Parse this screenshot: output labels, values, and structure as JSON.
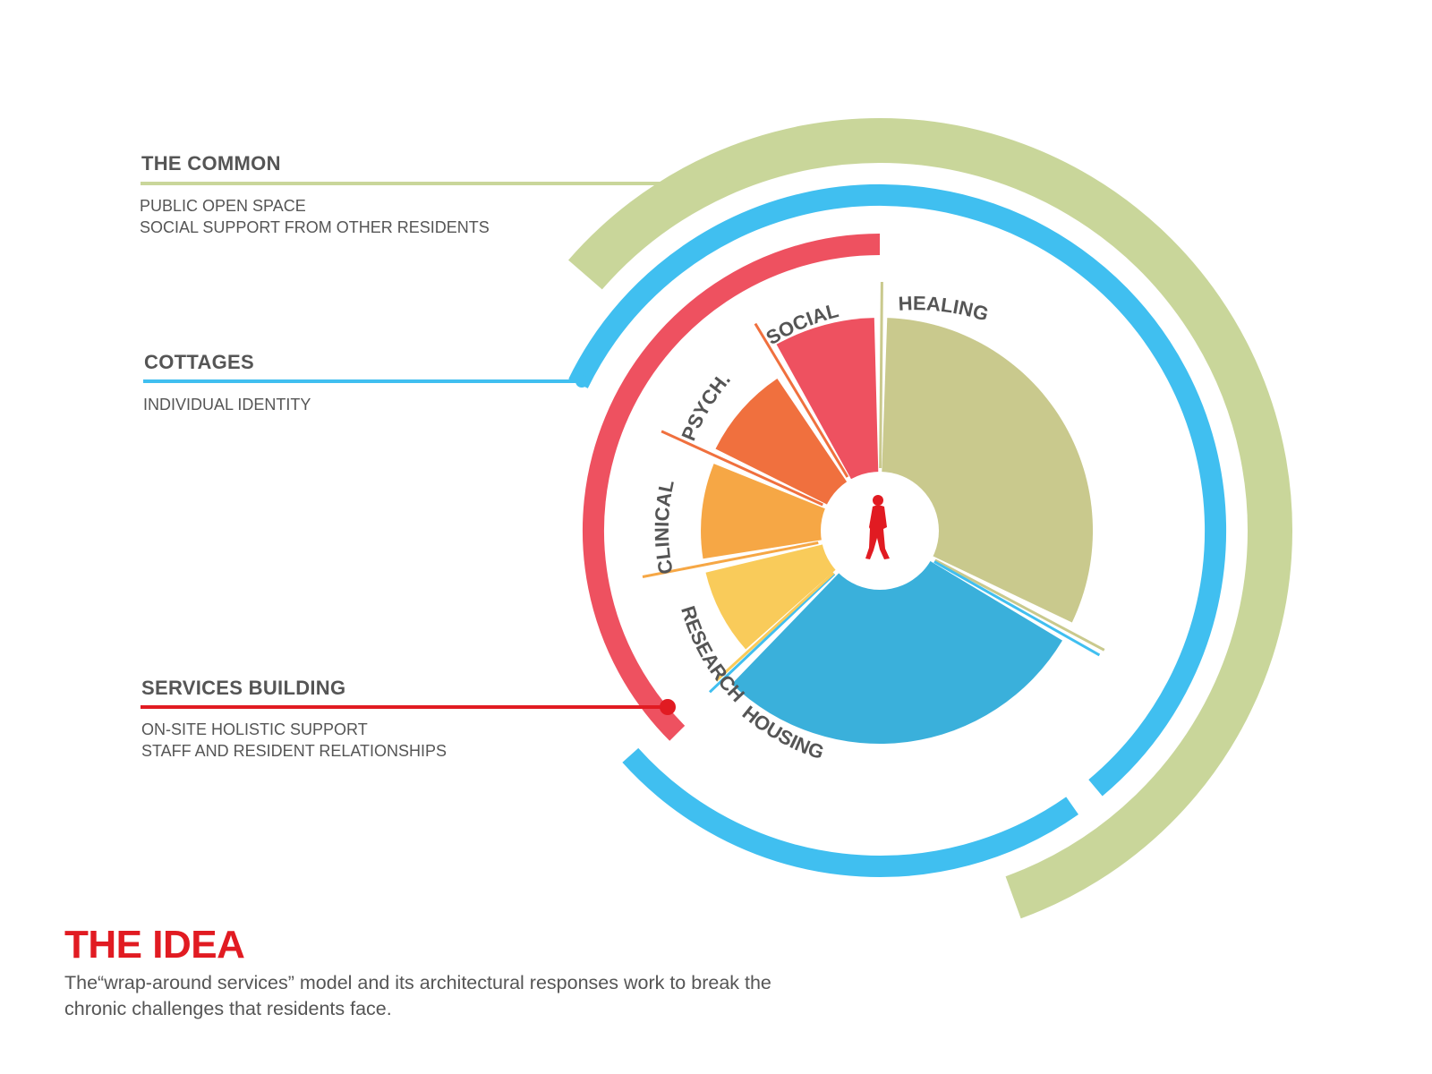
{
  "colors": {
    "common": "#c9d69a",
    "cottages": "#40bff0",
    "services": "#ee5160",
    "social": "#ee5160",
    "psych": "#f0703e",
    "clinical": "#f6a745",
    "research": "#f9cb5a",
    "housing": "#3ab0db",
    "healing": "#c9c98d",
    "text_gray": "#555555",
    "idea_red": "#e11b22",
    "person": "#e11b22"
  },
  "legend": {
    "common": {
      "title": "THE COMMON",
      "lines": [
        "PUBLIC OPEN SPACE",
        "SOCIAL SUPPORT FROM OTHER RESIDENTS"
      ]
    },
    "cottages": {
      "title": "COTTAGES",
      "lines": [
        "INDIVIDUAL IDENTITY"
      ]
    },
    "services": {
      "title": "SERVICES BUILDING",
      "lines": [
        "ON-SITE HOLISTIC SUPPORT",
        "STAFF AND RESIDENT RELATIONSHIPS"
      ]
    }
  },
  "segments": [
    {
      "key": "healing",
      "label": "HEALING"
    },
    {
      "key": "housing",
      "label": "HOUSING"
    },
    {
      "key": "research",
      "label": "RESEARCH"
    },
    {
      "key": "clinical",
      "label": "CLINICAL"
    },
    {
      "key": "psych",
      "label": "PSYCH."
    },
    {
      "key": "social",
      "label": "SOCIAL"
    }
  ],
  "center_icon": "person-walking-icon",
  "idea": {
    "title": "THE IDEA",
    "text": "The“wrap-around services” model and its architectural responses work to break the chronic challenges that residents face."
  }
}
